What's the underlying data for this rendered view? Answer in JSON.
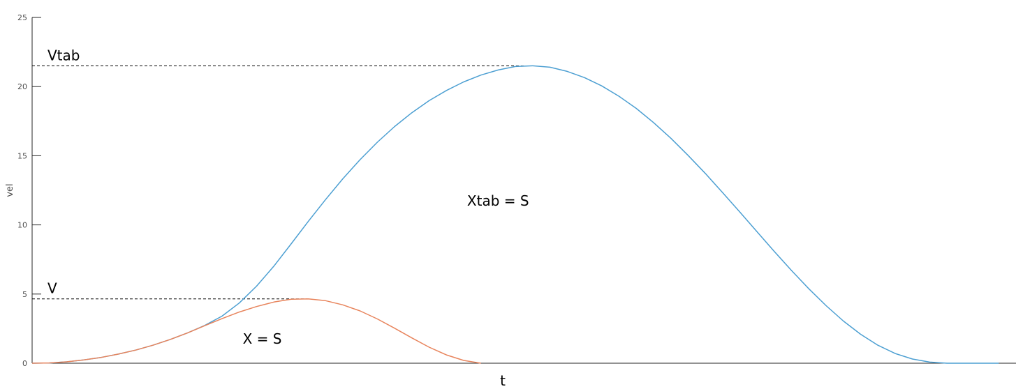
{
  "chart_data": {
    "type": "line",
    "xlabel": "t",
    "ylabel": "vel",
    "ylim": [
      0,
      25
    ],
    "yticks": [
      0,
      5,
      10,
      15,
      20,
      25
    ],
    "ytick_labels": [
      "0",
      "5",
      "10",
      "15",
      "20",
      "25"
    ],
    "grid": false,
    "legend": "none",
    "series": [
      {
        "color": "#4c9fd2",
        "x": [
          0.0,
          0.5,
          1.0,
          1.5,
          2.0,
          2.5,
          3.0,
          3.5,
          4.0,
          4.5,
          5.0,
          5.5,
          6.0,
          6.5,
          7.0,
          7.5,
          8.0,
          8.5,
          9.0,
          9.5,
          10.0,
          10.5,
          11.0,
          11.5,
          12.0,
          12.5,
          13.0,
          13.5,
          14.0,
          14.5,
          15.0,
          15.5,
          16.0,
          16.5,
          17.0,
          17.5,
          18.0,
          18.5,
          19.0,
          19.5,
          20.0,
          20.5,
          21.0,
          21.5,
          22.0,
          22.5,
          23.0,
          23.5,
          24.0,
          24.5,
          25.0,
          25.5,
          26.0,
          26.5,
          27.0,
          27.5,
          28.0
        ],
        "y": [
          0.0,
          0.02,
          0.1,
          0.24,
          0.42,
          0.66,
          0.95,
          1.3,
          1.72,
          2.19,
          2.73,
          3.4,
          4.35,
          5.57,
          7.01,
          8.62,
          10.25,
          11.83,
          13.33,
          14.72,
          15.98,
          17.11,
          18.11,
          18.98,
          19.72,
          20.34,
          20.83,
          21.2,
          21.45,
          21.5,
          21.4,
          21.1,
          20.65,
          20.05,
          19.3,
          18.42,
          17.4,
          16.27,
          15.03,
          13.72,
          12.34,
          10.93,
          9.5,
          8.08,
          6.7,
          5.38,
          4.16,
          3.05,
          2.09,
          1.3,
          0.7,
          0.3,
          0.08,
          0.0,
          0.0,
          0.0,
          0.0
        ]
      },
      {
        "color": "#e8845c",
        "x": [
          0.0,
          0.5,
          1.0,
          1.5,
          2.0,
          2.5,
          3.0,
          3.5,
          4.0,
          4.5,
          5.0,
          5.5,
          6.0,
          6.5,
          7.0,
          7.5,
          8.0,
          8.5,
          9.0,
          9.5,
          10.0,
          10.5,
          11.0,
          11.5,
          12.0,
          12.5,
          13.0
        ],
        "y": [
          0.0,
          0.02,
          0.1,
          0.24,
          0.42,
          0.66,
          0.95,
          1.3,
          1.72,
          2.19,
          2.71,
          3.22,
          3.7,
          4.1,
          4.42,
          4.62,
          4.65,
          4.52,
          4.22,
          3.78,
          3.2,
          2.53,
          1.83,
          1.16,
          0.6,
          0.2,
          0.0
        ]
      }
    ],
    "xlim": [
      0,
      28.5
    ],
    "reference_lines": [
      {
        "label": "Vtab",
        "y": 21.5,
        "x_end": 14.5
      },
      {
        "label": "V",
        "y": 4.65,
        "x_end": 8.0
      }
    ],
    "annotations": [
      {
        "text": "Xtab = S",
        "x": 12.6,
        "y": 11.4
      },
      {
        "text": "X = S",
        "x": 6.1,
        "y": 1.4
      }
    ]
  }
}
